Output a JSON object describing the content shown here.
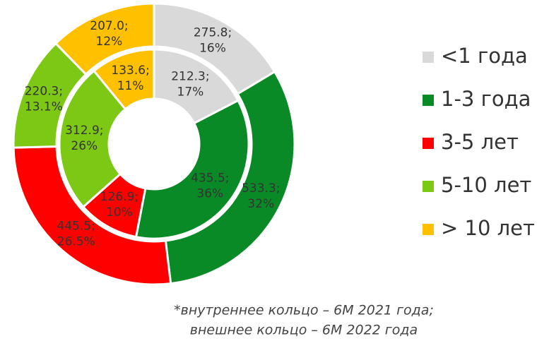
{
  "chart_data": {
    "type": "donut",
    "categories": [
      "<1 года",
      "1-3 года",
      "3-5 лет",
      "5-10 лет",
      "> 10 лет"
    ],
    "colors": [
      "#d9d9d9",
      "#0a8a27",
      "#ff0000",
      "#7cc814",
      "#ffc000"
    ],
    "rings": [
      {
        "values": [
          212.3,
          435.5,
          126.9,
          312.9,
          133.6
        ],
        "value_labels": [
          "212.3;",
          "435.5;",
          "126.9;",
          "312.9;",
          "133.6;"
        ],
        "share_labels": [
          "17%",
          "36%",
          "10%",
          "26%",
          "11%"
        ]
      },
      {
        "values": [
          275.8,
          533.3,
          445.5,
          220.3,
          207.0
        ],
        "value_labels": [
          "275.8;",
          "533.3;",
          "445.5;",
          "220.3;",
          "207.0;"
        ],
        "share_labels": [
          "16%",
          "32%",
          "26.5%",
          "13.1%",
          "12%"
        ]
      }
    ],
    "footnote": [
      "*внутреннее кольцо – 6М 2021 года;",
      "внешнее кольцо – 6М 2022 года"
    ]
  }
}
